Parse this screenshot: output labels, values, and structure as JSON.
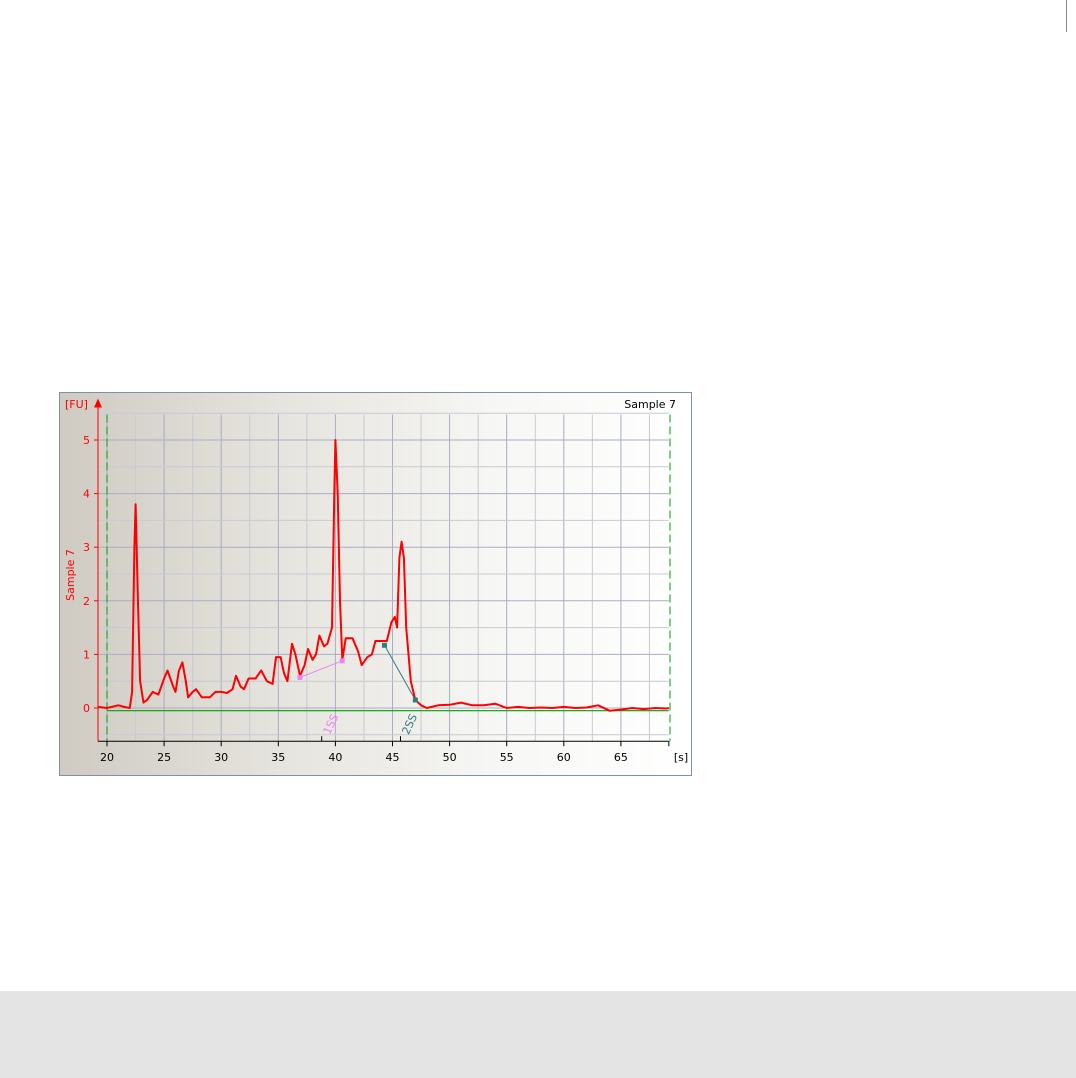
{
  "chart_data": {
    "type": "line",
    "title": "Sample 7",
    "xlabel": "[s]",
    "ylabel": "Sample 7",
    "yunit": "[FU]",
    "xlim": [
      19.2,
      69.2
    ],
    "ylim": [
      -0.62,
      5.7
    ],
    "xticks": [
      20,
      25,
      30,
      35,
      40,
      45,
      50,
      55,
      60,
      65
    ],
    "yticks": [
      0,
      1,
      2,
      3,
      4,
      5
    ],
    "grid": true,
    "colors": {
      "trace": "#ff0000",
      "axis": "#ff0000",
      "baseline": "#00a000",
      "marker": "#2e8b57",
      "grid": "#b8bccb",
      "region1": "#ee82ee",
      "region2": "#2f7f7f"
    },
    "series": [
      {
        "x": [
          19.2,
          20,
          21,
          21.5,
          22,
          22.2,
          22.4,
          22.5,
          22.7,
          22.9,
          23.2,
          23.5,
          24,
          24.5,
          25,
          25.3,
          25.8,
          26,
          26.3,
          26.6,
          26.9,
          27.1,
          27.5,
          27.8,
          28.3,
          29,
          29.5,
          30,
          30.5,
          31,
          31.3,
          31.7,
          32,
          32.4,
          33,
          33.5,
          34,
          34.5,
          34.8,
          35.2,
          35.5,
          35.8,
          36.2,
          36.5,
          36.9,
          37.3,
          37.6,
          38,
          38.3,
          38.6,
          39,
          39.3,
          39.7,
          39.9,
          40.0,
          40.2,
          40.4,
          40.6,
          40.9,
          41.5,
          42,
          42.3,
          42.8,
          43.2,
          43.5,
          44,
          44.5,
          44.9,
          45.2,
          45.4,
          45.6,
          45.8,
          46.0,
          46.2,
          46.6,
          47,
          47.5,
          48,
          49,
          50,
          51,
          52,
          53,
          54,
          55,
          56,
          57,
          58,
          59,
          60,
          61,
          62,
          63,
          64,
          65,
          66,
          67,
          68,
          69,
          69.2
        ],
        "y": [
          0.02,
          0,
          0.05,
          0.02,
          0.0,
          0.3,
          3.0,
          3.8,
          2.1,
          0.5,
          0.1,
          0.15,
          0.3,
          0.25,
          0.55,
          0.7,
          0.4,
          0.3,
          0.7,
          0.85,
          0.5,
          0.2,
          0.3,
          0.35,
          0.2,
          0.2,
          0.3,
          0.3,
          0.28,
          0.35,
          0.6,
          0.4,
          0.35,
          0.55,
          0.55,
          0.7,
          0.5,
          0.45,
          0.95,
          0.95,
          0.65,
          0.5,
          1.2,
          1.0,
          0.6,
          0.8,
          1.1,
          0.9,
          1.0,
          1.35,
          1.15,
          1.2,
          1.5,
          4.0,
          5.0,
          4.0,
          2.0,
          0.9,
          1.3,
          1.3,
          1.05,
          0.8,
          0.95,
          1.0,
          1.25,
          1.25,
          1.25,
          1.6,
          1.7,
          1.5,
          2.8,
          3.1,
          2.8,
          1.5,
          0.5,
          0.15,
          0.05,
          0.0,
          0.05,
          0.06,
          0.1,
          0.05,
          0.05,
          0.08,
          0.0,
          0.02,
          0.0,
          0.01,
          0.0,
          0.02,
          0.0,
          0.01,
          0.05,
          -0.05,
          -0.03,
          0.0,
          -0.02,
          0.0,
          -0.01,
          0.0
        ]
      }
    ],
    "baseline_y": -0.05,
    "time_markers": [
      20,
      69.3
    ],
    "regions": [
      {
        "label": "1SS",
        "start": [
          36.9,
          0.57
        ],
        "end": [
          40.6,
          0.88
        ],
        "tick": 38.8
      },
      {
        "label": "2SS",
        "start": [
          44.3,
          1.17
        ],
        "end": [
          47.0,
          0.15
        ],
        "tick": 45.7
      }
    ]
  }
}
